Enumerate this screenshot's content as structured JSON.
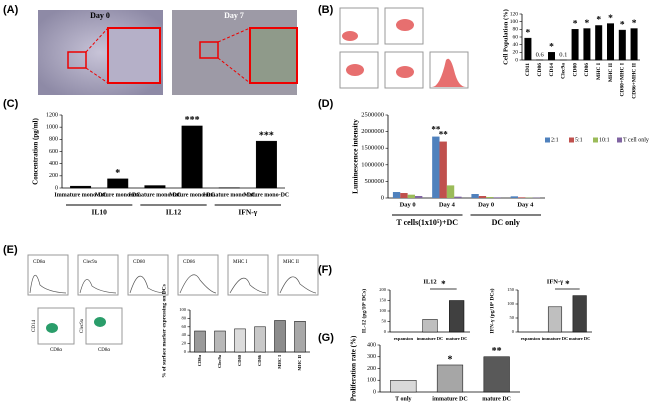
{
  "panels": [
    "(A)",
    "(B)",
    "(C)",
    "(D)",
    "(E)",
    "(F)",
    "(G)"
  ],
  "micro": {
    "day0": "Day 0",
    "day7": "Day 7"
  },
  "flow_e": {
    "histograms": [
      "CD8α",
      "Clec9a",
      "CD80",
      "CD86",
      "MHC I",
      "MHC II"
    ],
    "dot1": [
      "CD14",
      "CD8α"
    ],
    "dot2": [
      "Clec9a",
      "CD8α"
    ]
  },
  "chart_data": [
    {
      "type": "bar",
      "ylabel": "Cell Population (%)",
      "categories": [
        "CD11",
        "CD86",
        "CD14",
        "Clec9a",
        "CD80",
        "CD86",
        "MHC I",
        "MHC II",
        "CD80+MHC I",
        "CD86+MHC II"
      ],
      "values": [
        57,
        0.6,
        20,
        0.1,
        80,
        82,
        90,
        95,
        78,
        82
      ],
      "value_labels": [
        null,
        "0.6",
        null,
        "0.1",
        null,
        null,
        null,
        null,
        null,
        null
      ],
      "significance": [
        "*",
        null,
        "*",
        null,
        "*",
        "*",
        "*",
        "*",
        "*",
        "*"
      ],
      "color": "#000000",
      "ylim": [
        0,
        120
      ],
      "yticks": [
        0,
        20,
        40,
        60,
        80,
        100,
        120
      ]
    },
    {
      "type": "bar",
      "ylabel": "Concentration (pg/ml)",
      "categories": [
        "Immature mono-DC",
        "Mature mono-DC",
        "Immature mono-DC",
        "Mature mono-DC",
        "Immature mono-DC",
        "Mature mono-DC"
      ],
      "group_labels": [
        "IL10",
        "IL12",
        "IFN-γ"
      ],
      "values": [
        30,
        150,
        40,
        1020,
        5,
        770
      ],
      "significance": [
        null,
        "*",
        null,
        "***",
        null,
        "***"
      ],
      "color": "#000000",
      "ylim": [
        0,
        1200
      ],
      "yticks": [
        0,
        200,
        400,
        600,
        800,
        1000,
        1200
      ]
    },
    {
      "type": "bar",
      "ylabel": "Luminescence intensity",
      "categories": [
        "Day 0",
        "Day 4",
        "Day 0",
        "Day 4"
      ],
      "group_labels": [
        "T cells(1x10⁵)+DC",
        "DC only"
      ],
      "series": [
        {
          "name": "2:1",
          "color": "#4f81bd",
          "values": [
            180000,
            1850000,
            120000,
            50000
          ],
          "significance": [
            null,
            "**",
            null,
            null
          ]
        },
        {
          "name": "5:1",
          "color": "#c0504d",
          "values": [
            150000,
            1700000,
            60000,
            20000
          ],
          "significance": [
            null,
            "**",
            null,
            null
          ]
        },
        {
          "name": "10:1",
          "color": "#9bbb59",
          "values": [
            100000,
            380000,
            30000,
            10000
          ]
        },
        {
          "name": "T cell only",
          "color": "#8064a2",
          "values": [
            60000,
            40000,
            20000,
            10000
          ]
        }
      ],
      "ylim": [
        0,
        2500000
      ],
      "yticks": [
        0,
        500000,
        1000000,
        1500000,
        2000000,
        2500000
      ]
    },
    {
      "type": "bar",
      "ylabel": "% of surface marker expressing on DCs",
      "categories": [
        "CD8α",
        "Clec9a",
        "CD80",
        "CD86",
        "MHC I",
        "MHC II"
      ],
      "values": [
        50,
        50,
        55,
        60,
        75,
        73
      ],
      "colors": [
        "#9a9a9a",
        "#b8b8b8",
        "#dcdcdc",
        "#c8c8c8",
        "#8c8c8c",
        "#a8a8a8"
      ],
      "ylim": [
        0,
        100
      ],
      "yticks": [
        0,
        20,
        40,
        60,
        80,
        100
      ]
    },
    {
      "type": "bar",
      "title": "IL12",
      "ylabel": "IL-12 (pg/10⁶ DCs)",
      "categories": [
        "expansion",
        "immature DC",
        "mature DC"
      ],
      "values": [
        0,
        60,
        150
      ],
      "colors": [
        "#ffffff",
        "#bfbfbf",
        "#404040"
      ],
      "annotation": "*",
      "ylim": [
        0,
        200
      ],
      "yticks": [
        0,
        50,
        100,
        150,
        200
      ]
    },
    {
      "type": "bar",
      "title": "IFN-γ",
      "ylabel": "IFN-γ (pg/10⁶ DCs)",
      "categories": [
        "expansion",
        "immature DC",
        "mature DC"
      ],
      "values": [
        0,
        90,
        130
      ],
      "colors": [
        "#ffffff",
        "#bfbfbf",
        "#404040"
      ],
      "annotation": "*",
      "ylim": [
        0,
        150
      ],
      "yticks": [
        0,
        50,
        100,
        150
      ]
    },
    {
      "type": "bar",
      "ylabel": "Proliferation rate (%)",
      "categories": [
        "T only",
        "immature DC",
        "mature DC"
      ],
      "values": [
        100,
        230,
        300
      ],
      "significance": [
        null,
        "*",
        "**"
      ],
      "colors": [
        "#d9d9d9",
        "#a6a6a6",
        "#595959"
      ],
      "ylim": [
        0,
        400
      ],
      "yticks": [
        0,
        100,
        200,
        300,
        400
      ]
    }
  ]
}
